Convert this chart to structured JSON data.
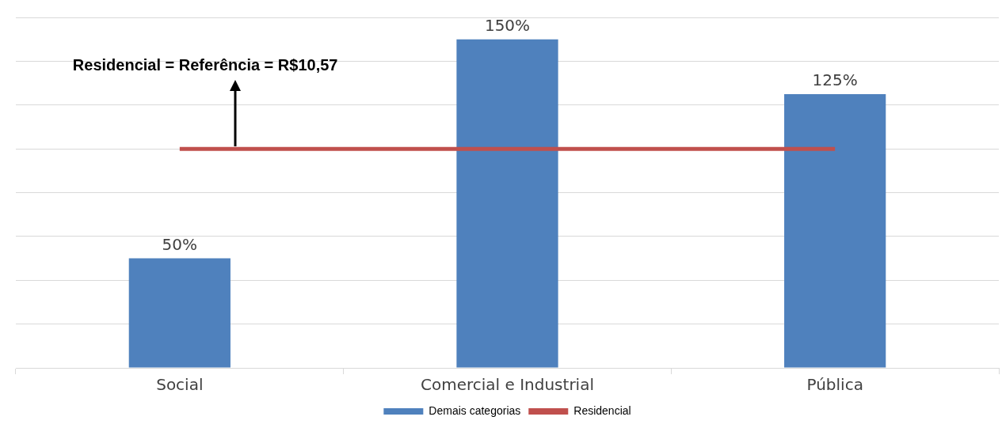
{
  "chart_data": {
    "type": "bar",
    "categories": [
      "Social",
      "Comercial e Industrial",
      "Pública"
    ],
    "series": [
      {
        "name": "Demais categorias",
        "color": "#4f81bd",
        "values": [
          50,
          150,
          125
        ],
        "value_labels": [
          "50%",
          "150%",
          "125%"
        ]
      },
      {
        "name": "Residencial",
        "type": "line",
        "color": "#c0504d",
        "values": [
          100,
          100,
          100
        ]
      }
    ],
    "ylim": [
      0,
      160
    ],
    "yticks": [
      {
        "value": 0,
        "label": null
      },
      {
        "value": 20,
        "label": null
      },
      {
        "value": 40,
        "label": null
      },
      {
        "value": 60,
        "label": null
      },
      {
        "value": 80,
        "label": null
      },
      {
        "value": 100,
        "label": null
      },
      {
        "value": 120,
        "label": null
      },
      {
        "value": 140,
        "label": null
      },
      {
        "value": 160,
        "label": null
      }
    ],
    "tick_labels": "x",
    "grid": "y",
    "legend": "bottom",
    "marker": "none",
    "line_style": "solid",
    "annotations": [
      "Residencial = Referência = R$10,57"
    ]
  }
}
